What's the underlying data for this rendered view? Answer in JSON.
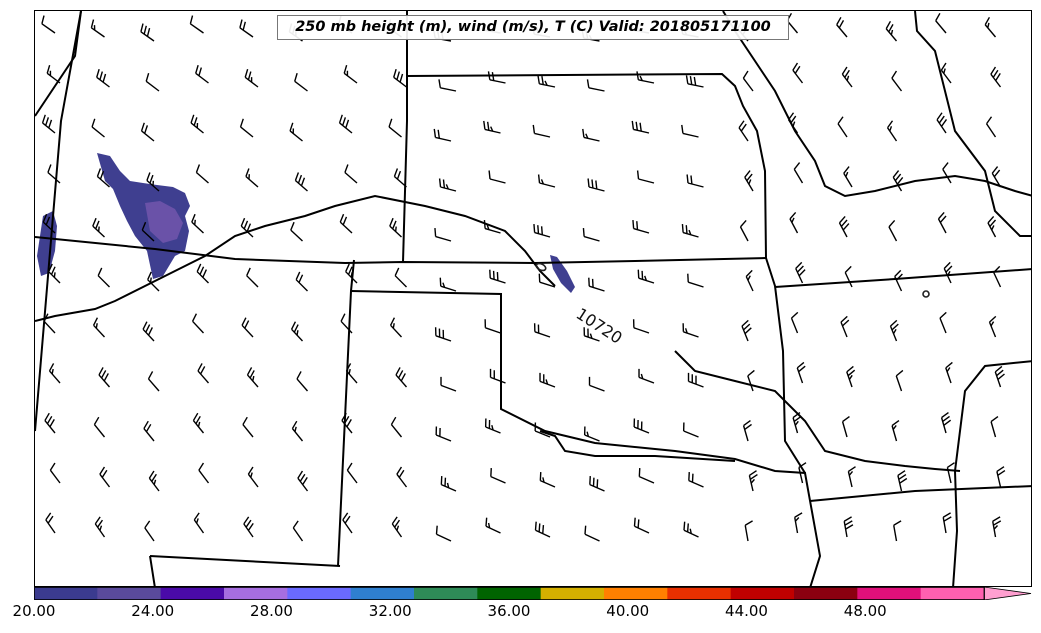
{
  "title": "250 mb height (m), wind (m/s), T (C) Valid: 201805171100",
  "contour": {
    "label": "10720"
  },
  "colorbar": {
    "min": 20,
    "max": 52,
    "step": 2,
    "tick_labels": [
      "20.00",
      "24.00",
      "28.00",
      "32.00",
      "36.00",
      "40.00",
      "44.00",
      "48.00"
    ],
    "tick_values": [
      20,
      24,
      28,
      32,
      36,
      40,
      44,
      48
    ],
    "colors": [
      "#3b3b8f",
      "#5a4a9c",
      "#4a0aa8",
      "#a66ee0",
      "#6a6aff",
      "#2f7fcf",
      "#2e8b57",
      "#006400",
      "#d4b000",
      "#ff8000",
      "#e83000",
      "#c00000",
      "#8b0010",
      "#e0107a",
      "#ff60b0"
    ],
    "extend_color": "#ff9fd0"
  },
  "shading_color": "#3f3f90",
  "shading_inner_color": "#6a52a8"
}
